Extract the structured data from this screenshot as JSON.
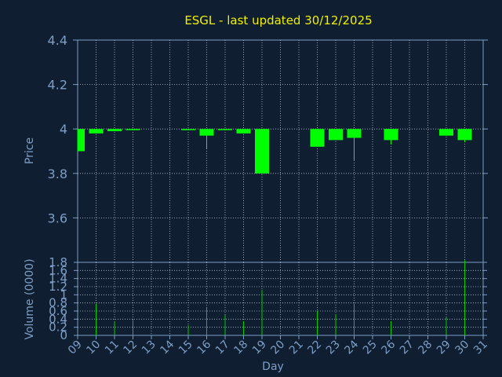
{
  "chart_data": [
    {
      "type": "candlestick",
      "title": "ESGL - last updated 30/12/2025",
      "ylabel": "Price",
      "ylim": [
        3.4,
        4.4
      ],
      "yticks": [
        "4.4",
        "4.2",
        "4",
        "3.8",
        "3.6"
      ],
      "grid": true,
      "x": [
        "09",
        "10",
        "11",
        "12",
        "15",
        "16",
        "17",
        "18",
        "19",
        "22",
        "23",
        "24",
        "26",
        "29",
        "30"
      ],
      "open": [
        4.0,
        4.0,
        4.0,
        4.0,
        4.0,
        4.0,
        4.0,
        4.0,
        4.0,
        4.0,
        4.0,
        4.0,
        4.0,
        4.0,
        4.0
      ],
      "close": [
        3.9,
        3.98,
        3.99,
        3.995,
        3.995,
        3.97,
        3.995,
        3.98,
        3.8,
        3.92,
        3.95,
        3.96,
        3.95,
        3.97,
        3.95
      ],
      "high": [
        4.0,
        4.0,
        4.0,
        4.0,
        4.0,
        4.0,
        4.0,
        4.0,
        4.0,
        4.0,
        4.0,
        4.0,
        4.0,
        4.0,
        4.0
      ],
      "low": [
        3.9,
        3.98,
        3.99,
        3.995,
        3.995,
        3.91,
        3.995,
        3.98,
        3.8,
        3.92,
        3.95,
        3.86,
        3.93,
        3.97,
        3.94
      ]
    },
    {
      "type": "bar",
      "ylabel": "Volume (0000)",
      "ylim": [
        0,
        1.8
      ],
      "yticks": [
        "1.8",
        "1.6",
        "1.4",
        "1.2",
        "1",
        "0.8",
        "0.6",
        "0.4",
        "0.2",
        "0"
      ],
      "xlabel": "Day",
      "xticks": [
        "09",
        "10",
        "11",
        "12",
        "13",
        "14",
        "15",
        "16",
        "17",
        "18",
        "19",
        "20",
        "21",
        "22",
        "23",
        "24",
        "25",
        "26",
        "27",
        "28",
        "29",
        "30",
        "31"
      ],
      "x": [
        "09",
        "10",
        "11",
        "12",
        "15",
        "16",
        "17",
        "18",
        "19",
        "22",
        "23",
        "24",
        "26",
        "29",
        "30"
      ],
      "values": [
        0.0,
        0.78,
        0.35,
        0.38,
        0.25,
        0.7,
        0.5,
        0.35,
        1.12,
        0.6,
        0.52,
        0.78,
        0.35,
        0.45,
        1.85
      ]
    }
  ],
  "colors": {
    "background": "#0f1e30",
    "grid": "#b4c2d2",
    "axis": "#7e9ec6",
    "candle": "#00ff00",
    "volume": "#00cc00",
    "title": "#f0f000"
  }
}
